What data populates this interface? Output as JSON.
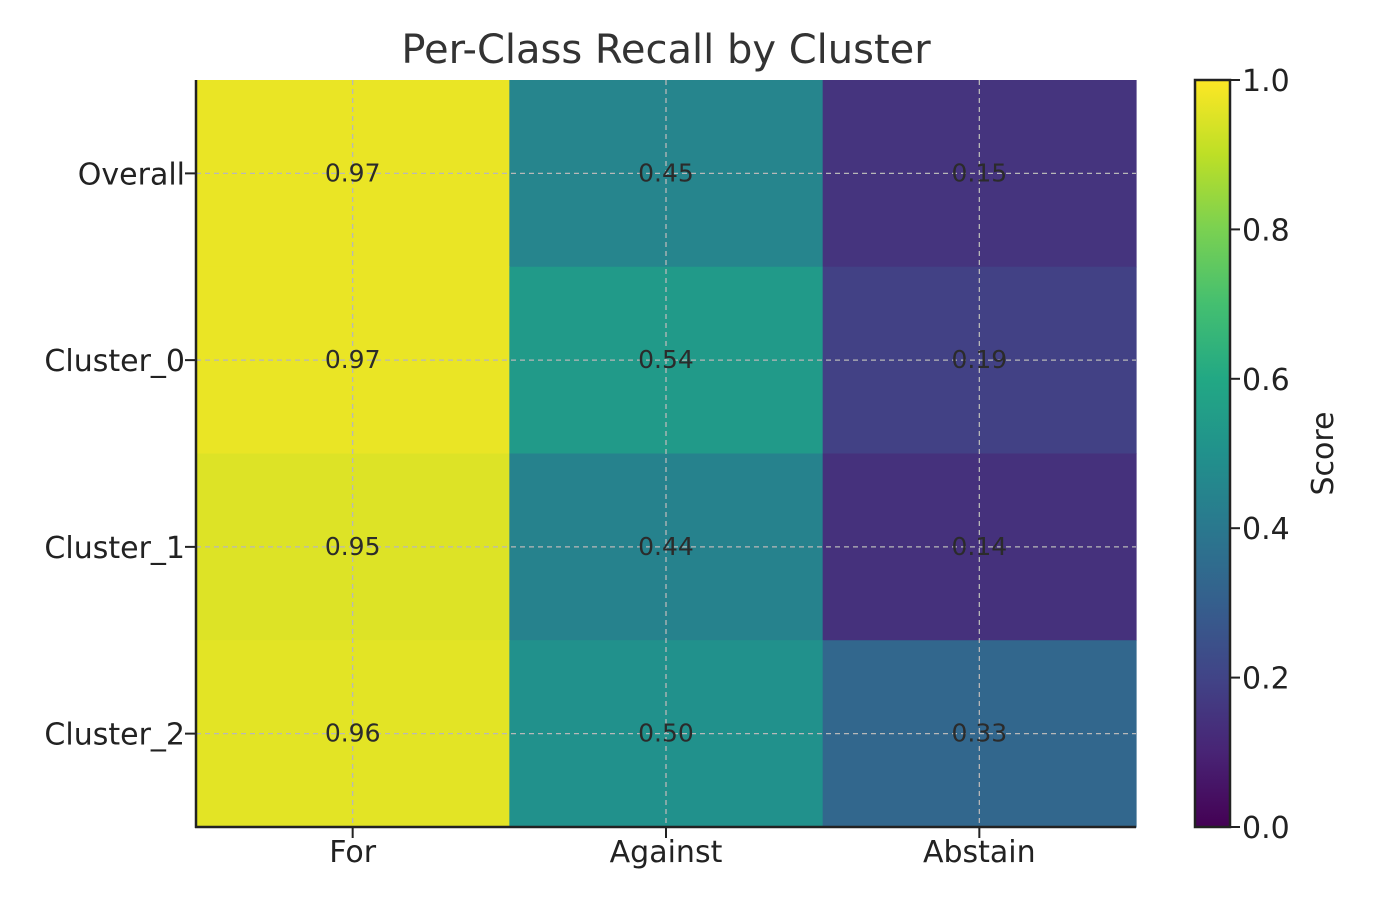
{
  "chart_data": {
    "type": "heatmap",
    "title": "Per-Class Recall by Cluster",
    "x_categories": [
      "For",
      "Against",
      "Abstain"
    ],
    "y_categories": [
      "Overall",
      "Cluster_0",
      "Cluster_1",
      "Cluster_2"
    ],
    "values": [
      [
        0.97,
        0.45,
        0.15
      ],
      [
        0.97,
        0.54,
        0.19
      ],
      [
        0.95,
        0.44,
        0.14
      ],
      [
        0.96,
        0.5,
        0.33
      ]
    ],
    "cell_labels": [
      [
        "0.97",
        "0.45",
        "0.15"
      ],
      [
        "0.97",
        "0.54",
        "0.19"
      ],
      [
        "0.95",
        "0.44",
        "0.14"
      ],
      [
        "0.96",
        "0.50",
        "0.33"
      ]
    ],
    "colorbar": {
      "label": "Score",
      "range": [
        0.0,
        1.0
      ],
      "ticks": [
        "0.0",
        "0.2",
        "0.4",
        "0.6",
        "0.8",
        "1.0"
      ],
      "colormap": "viridis"
    },
    "grid": true,
    "grid_style": "dashed"
  }
}
